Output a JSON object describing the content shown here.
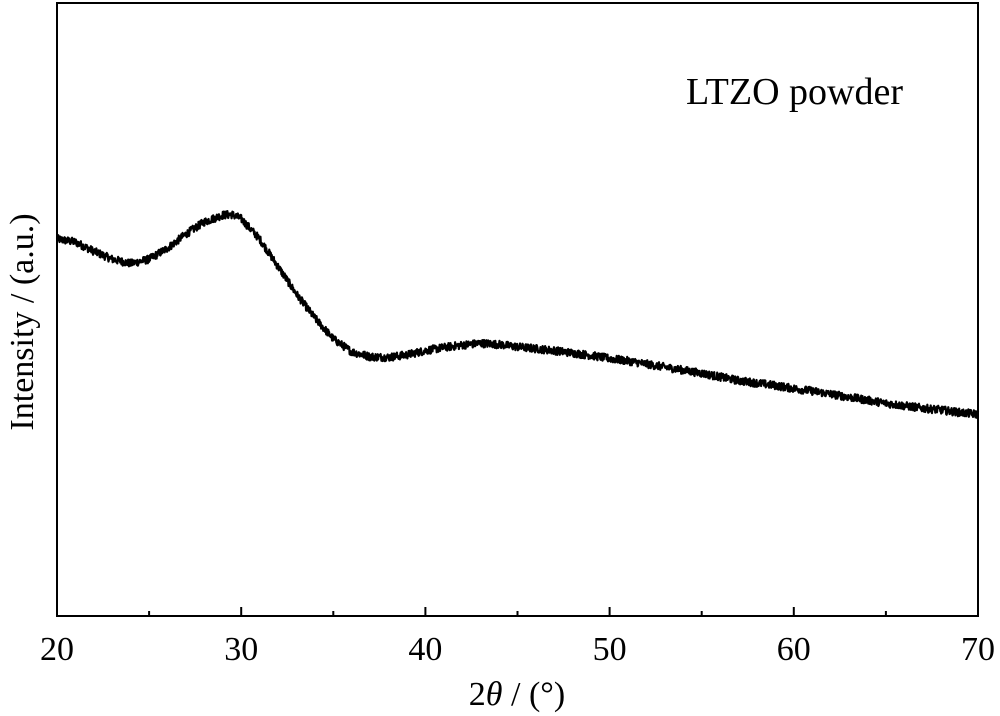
{
  "chart_data": {
    "type": "line",
    "title": "",
    "xlabel": {
      "prefix": "2",
      "symbol": "θ",
      "suffix": " / (°)"
    },
    "ylabel": "Intensity / (a.u.)",
    "annotation": "LTZO powder",
    "xlim": [
      20,
      70
    ],
    "ylim": [
      0,
      100
    ],
    "x_ticks": [
      20,
      30,
      40,
      50,
      60,
      70
    ],
    "x_tick_labels": [
      "20",
      "30",
      "40",
      "50",
      "60",
      "70"
    ],
    "y_ticks_labeled": false,
    "grid": false,
    "legend": "none",
    "line_color": "#000000",
    "series": [
      {
        "x": [
          20,
          21,
          22,
          23,
          24,
          25,
          26,
          27,
          28,
          29,
          29.5,
          30,
          31,
          32,
          33,
          34,
          35,
          36,
          37,
          38,
          39,
          40,
          41,
          42,
          43,
          44,
          45,
          46,
          47,
          48,
          49,
          50,
          51,
          52,
          53,
          54,
          55,
          56,
          57,
          58,
          59,
          60,
          61,
          62,
          63,
          64,
          65,
          66,
          67,
          68,
          69,
          70
        ],
        "values": [
          61.5,
          61,
          59.5,
          58.2,
          57.5,
          58.2,
          60,
          62.3,
          64.3,
          65.4,
          65.5,
          64.8,
          61.5,
          57,
          52.5,
          48.6,
          45.2,
          43.1,
          42.3,
          42.2,
          42.6,
          43.3,
          43.8,
          44.2,
          44.5,
          44.3,
          43.9,
          43.6,
          43.3,
          42.9,
          42.5,
          42,
          41.6,
          41.1,
          40.6,
          40.1,
          39.6,
          39,
          38.4,
          38,
          37.6,
          37.1,
          36.7,
          36.2,
          35.7,
          35.2,
          34.7,
          34.3,
          33.9,
          33.6,
          33.2,
          32.9
        ]
      }
    ]
  }
}
